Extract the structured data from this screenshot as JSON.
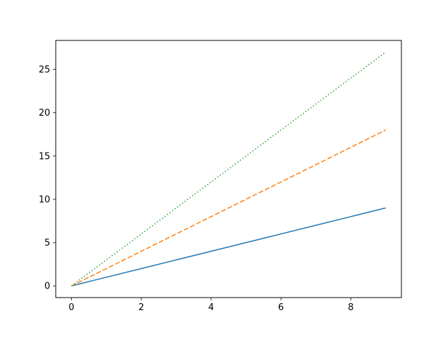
{
  "chart_data": {
    "type": "line",
    "title": "",
    "xlabel": "",
    "ylabel": "",
    "xlim": [
      -0.45,
      9.45
    ],
    "ylim": [
      -1.35,
      28.35
    ],
    "xticks": [
      0,
      2,
      4,
      6,
      8
    ],
    "yticks": [
      0,
      5,
      10,
      15,
      20,
      25
    ],
    "grid": false,
    "legend": "none",
    "x": [
      0,
      1,
      2,
      3,
      4,
      5,
      6,
      7,
      8,
      9
    ],
    "series": [
      {
        "values": [
          0,
          1,
          2,
          3,
          4,
          5,
          6,
          7,
          8,
          9
        ],
        "color": "#1f77b4",
        "line_style": "solid"
      },
      {
        "values": [
          0,
          2,
          4,
          6,
          8,
          10,
          12,
          14,
          16,
          18
        ],
        "color": "#ff7f0e",
        "line_style": "dashed"
      },
      {
        "values": [
          0,
          3,
          6,
          9,
          12,
          15,
          18,
          21,
          24,
          27
        ],
        "color": "#2ca02c",
        "line_style": "dotted"
      }
    ]
  }
}
